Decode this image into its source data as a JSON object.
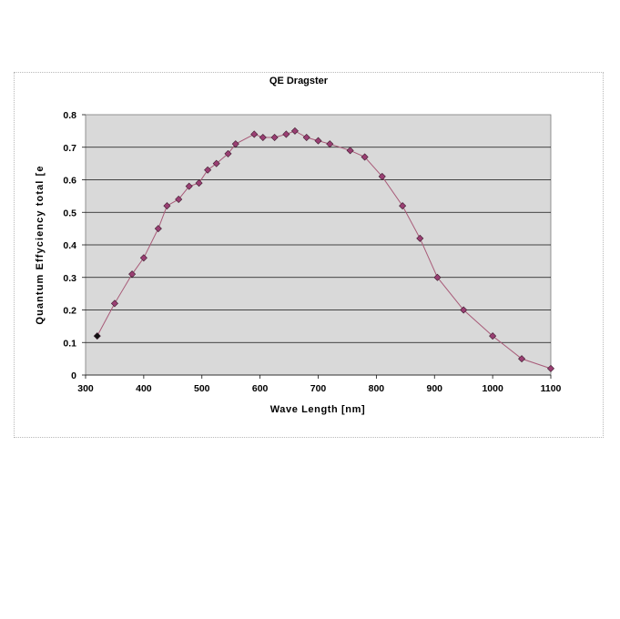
{
  "chart_data": {
    "type": "scatter",
    "title": "QE Dragster",
    "xlabel": "Wave Length [nm]",
    "ylabel": "Quantum Effyciency total [e",
    "xlim": [
      300,
      1100
    ],
    "ylim": [
      0,
      0.8
    ],
    "x_ticks": [
      300,
      400,
      500,
      600,
      700,
      800,
      900,
      1000,
      1100
    ],
    "y_ticks": [
      0,
      0.1,
      0.2,
      0.3,
      0.4,
      0.5,
      0.6,
      0.7,
      0.8
    ],
    "grid": "horizontal",
    "plot_background": "#d9d9d9",
    "line_color": "#a85a78",
    "marker_color": "#9a3f73",
    "first_marker_color": "#111111",
    "series": [
      {
        "x": [
          320,
          350,
          380,
          400,
          425,
          440,
          460,
          478,
          495,
          510,
          525,
          545,
          558,
          590,
          605,
          625,
          645,
          660,
          680,
          700,
          720,
          755,
          780,
          810,
          845,
          875,
          905,
          950,
          1000,
          1050,
          1100
        ],
        "y": [
          0.12,
          0.22,
          0.31,
          0.36,
          0.45,
          0.52,
          0.54,
          0.58,
          0.59,
          0.63,
          0.65,
          0.68,
          0.71,
          0.74,
          0.73,
          0.73,
          0.74,
          0.75,
          0.73,
          0.72,
          0.71,
          0.69,
          0.67,
          0.61,
          0.52,
          0.42,
          0.3,
          0.2,
          0.12,
          0.05,
          0.02
        ]
      }
    ]
  }
}
